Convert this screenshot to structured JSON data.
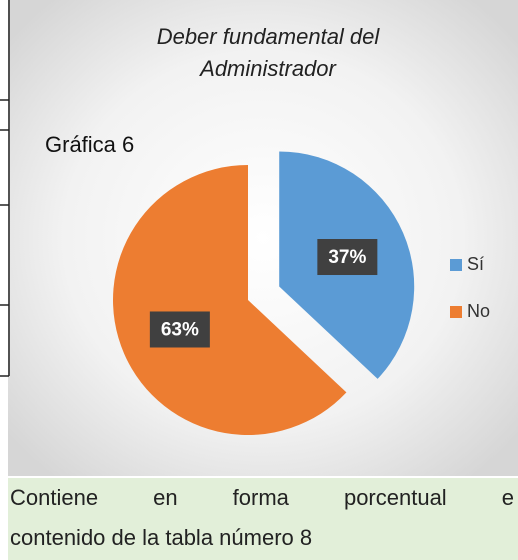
{
  "chart_data": {
    "type": "pie",
    "title": [
      "Deber fundamental del",
      "Administrador"
    ],
    "annotation": "Gráfica 6",
    "categories": [
      "Sí",
      "No"
    ],
    "values": [
      37,
      63
    ],
    "value_labels": [
      "37%",
      "63%"
    ],
    "colors": [
      "#5b9bd5",
      "#ed7d31"
    ],
    "legend": "right"
  },
  "caption": [
    "Contiene en forma porcentual e",
    "contenido de la tabla número 8"
  ]
}
